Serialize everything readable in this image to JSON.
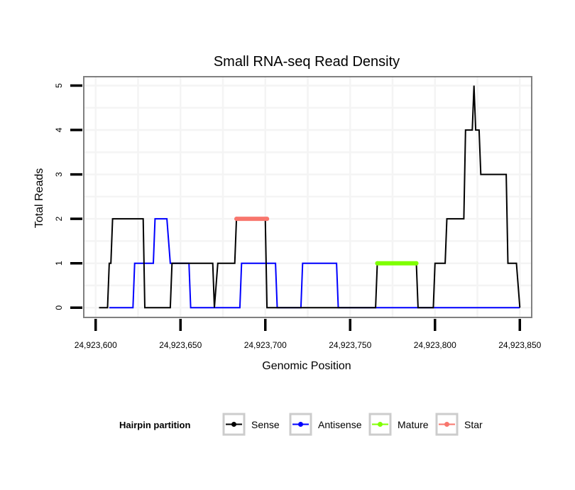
{
  "chart_data": {
    "type": "line",
    "title": "Small RNA-seq Read Density",
    "xlabel": "Genomic Position",
    "ylabel": "Total Reads",
    "xlim": [
      24923593,
      24923857
    ],
    "ylim": [
      -0.22,
      5.2
    ],
    "x_ticks": [
      24923600,
      24923650,
      24923700,
      24923750,
      24923800,
      24923850
    ],
    "x_tick_labels": [
      "24,923,600",
      "24,923,650",
      "24,923,700",
      "24,923,750",
      "24,923,800",
      "24,923,850"
    ],
    "y_ticks": [
      0,
      1,
      2,
      3,
      4,
      5
    ],
    "y_tick_labels": [
      "0",
      "1",
      "2",
      "3",
      "4",
      "5"
    ],
    "grid": true,
    "legend": {
      "title": "Hairpin partition",
      "position": "bottom",
      "entries": [
        {
          "name": "Sense",
          "color": "#000000"
        },
        {
          "name": "Antisense",
          "color": "#0000ff"
        },
        {
          "name": "Mature",
          "color": "#7fff00"
        },
        {
          "name": "Star",
          "color": "#f8766d"
        }
      ]
    },
    "series": [
      {
        "name": "Sense",
        "color": "#000000",
        "points": [
          [
            24923602,
            0
          ],
          [
            24923607,
            0
          ],
          [
            24923608,
            1
          ],
          [
            24923609,
            1
          ],
          [
            24923610,
            2
          ],
          [
            24923628,
            2
          ],
          [
            24923629,
            0
          ],
          [
            24923644,
            0
          ],
          [
            24923645,
            1
          ],
          [
            24923669,
            1
          ],
          [
            24923670,
            0
          ],
          [
            24923672,
            1
          ],
          [
            24923682,
            1
          ],
          [
            24923683,
            2
          ],
          [
            24923700,
            2
          ],
          [
            24923701,
            0
          ],
          [
            24923765,
            0
          ],
          [
            24923766,
            1
          ],
          [
            24923789,
            1
          ],
          [
            24923790,
            0
          ],
          [
            24923799,
            0
          ],
          [
            24923800,
            1
          ],
          [
            24923806,
            1
          ],
          [
            24923807,
            2
          ],
          [
            24923817,
            2
          ],
          [
            24923818,
            4
          ],
          [
            24923822,
            4
          ],
          [
            24923823,
            5
          ],
          [
            24923824,
            4
          ],
          [
            24923826,
            4
          ],
          [
            24923827,
            3
          ],
          [
            24923842,
            3
          ],
          [
            24923843,
            1
          ],
          [
            24923848,
            1
          ],
          [
            24923850,
            0
          ]
        ]
      },
      {
        "name": "Antisense",
        "color": "#0000ff",
        "points": [
          [
            24923608,
            0
          ],
          [
            24923622,
            0
          ],
          [
            24923623,
            1
          ],
          [
            24923634,
            1
          ],
          [
            24923635,
            2
          ],
          [
            24923642,
            2
          ],
          [
            24923644,
            1
          ],
          [
            24923655,
            1
          ],
          [
            24923656,
            0
          ],
          [
            24923685,
            0
          ],
          [
            24923686,
            1
          ],
          [
            24923706,
            1
          ],
          [
            24923707,
            0
          ],
          [
            24923721,
            0
          ],
          [
            24923722,
            1
          ],
          [
            24923742,
            1
          ],
          [
            24923743,
            0
          ],
          [
            24923850,
            0
          ]
        ]
      },
      {
        "name": "Mature",
        "color": "#7fff00",
        "points": [
          [
            24923766,
            1
          ],
          [
            24923789,
            1
          ]
        ]
      },
      {
        "name": "Star",
        "color": "#f8766d",
        "points": [
          [
            24923683,
            2
          ],
          [
            24923701,
            2
          ]
        ]
      }
    ]
  }
}
